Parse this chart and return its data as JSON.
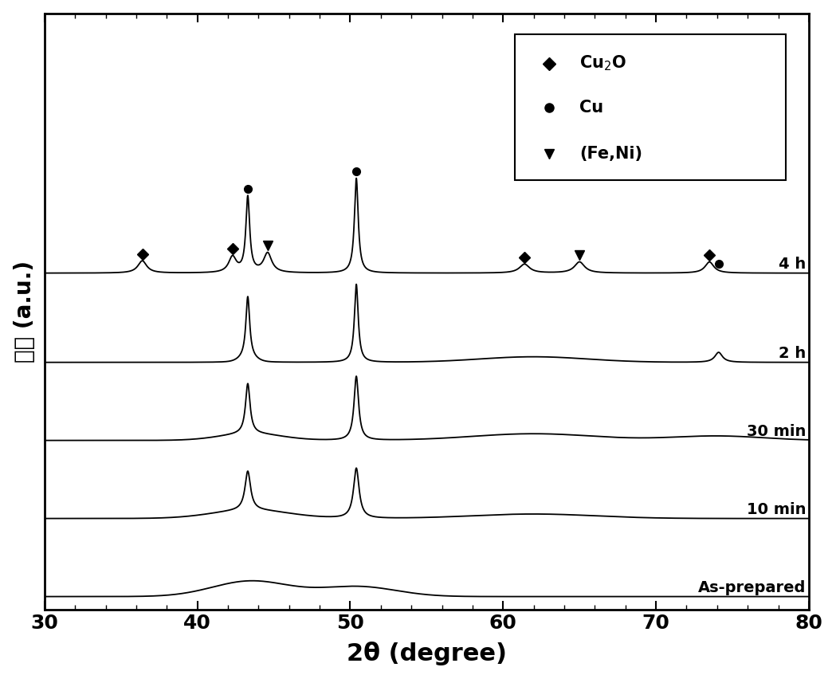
{
  "x_min": 30,
  "x_max": 80,
  "xlabel": "2θ (degree)",
  "ylabel": "强度 (a.u.)",
  "xlabel_fontsize": 22,
  "ylabel_fontsize": 20,
  "tick_fontsize": 18,
  "label_fontsize": 14,
  "background_color": "#ffffff",
  "line_color": "#000000",
  "labels": [
    "As-prepared",
    "10 min",
    "30 min",
    "2 h",
    "4 h"
  ],
  "offsets": [
    0.0,
    1.4,
    2.8,
    4.2,
    5.8
  ],
  "cu2o_peaks": [
    36.4,
    42.3,
    61.4,
    73.5
  ],
  "cu_peaks": [
    43.3,
    50.4,
    74.1
  ],
  "feni_peaks": [
    44.6,
    65.0
  ],
  "xticks": [
    30,
    40,
    50,
    60,
    70,
    80
  ],
  "ylim_min": -0.2,
  "ylim_max": 10.5
}
